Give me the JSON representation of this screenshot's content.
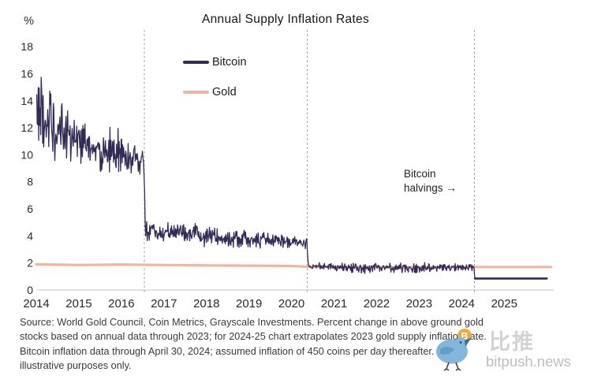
{
  "title": "Annual Supply Inflation Rates",
  "legend": {
    "items": [
      {
        "label": "Bitcoin",
        "color": "#312b55"
      },
      {
        "label": "Gold",
        "color": "#f4b3a0"
      }
    ]
  },
  "annotation": {
    "line1": "Bitcoin",
    "line2": "halvings →"
  },
  "source": {
    "lines": [
      "Source: World Gold Council, Coin Metrics, Grayscale Investments. Percent change in above ground gold",
      "stocks based on annual data through 2023; for 2024-25 chart extrapolates 2023 gold supply inflation rate.",
      "Bitcoin inflation data through April 30, 2024; assumed inflation of 450 coins per day thereafter. For",
      "illustrative purposes only."
    ]
  },
  "watermark": {
    "cn": "比推",
    "site": "bitpush.news"
  },
  "chart_data": {
    "type": "line",
    "title": "Annual Supply Inflation Rates",
    "xlabel": "",
    "ylabel": "%",
    "xlim": [
      2014.0,
      2026.2
    ],
    "ylim": [
      0,
      19
    ],
    "grid": false,
    "legend_position": "inside-top-left",
    "xticks": [
      2014,
      2015,
      2016,
      2017,
      2018,
      2019,
      2020,
      2021,
      2022,
      2023,
      2024,
      2025
    ],
    "yticks": [
      0,
      2,
      4,
      6,
      8,
      10,
      12,
      14,
      16,
      18
    ],
    "halvings": [
      2016.54,
      2020.37,
      2024.3
    ],
    "halvings_note": "Bitcoin halvings →",
    "colors": {
      "bitcoin": "#312b55",
      "gold": "#f4b3a0",
      "axis": "#d8d8d8",
      "dash": "#9b9b9b",
      "tick": "#2a2a2a"
    },
    "series": [
      {
        "name": "Bitcoin",
        "style": "noisy",
        "note": "anchors are [year, mean %, jitter amplitude %]; vertical drops at each halving",
        "anchors": [
          [
            2014.0,
            13.8,
            3.2
          ],
          [
            2014.15,
            12.8,
            2.6
          ],
          [
            2014.4,
            12.0,
            2.2
          ],
          [
            2014.7,
            11.6,
            2.0
          ],
          [
            2015.0,
            11.0,
            1.8
          ],
          [
            2015.3,
            10.6,
            1.6
          ],
          [
            2015.6,
            10.3,
            1.6
          ],
          [
            2015.9,
            10.6,
            2.2
          ],
          [
            2016.1,
            10.0,
            1.4
          ],
          [
            2016.35,
            9.6,
            1.3
          ],
          [
            2016.53,
            9.2,
            1.1
          ],
          [
            2016.56,
            4.4,
            0.7
          ],
          [
            2017.0,
            4.3,
            0.6
          ],
          [
            2017.5,
            4.15,
            0.6
          ],
          [
            2017.95,
            3.95,
            0.85
          ],
          [
            2018.3,
            3.9,
            0.6
          ],
          [
            2018.8,
            3.85,
            0.6
          ],
          [
            2019.3,
            3.75,
            0.6
          ],
          [
            2019.8,
            3.6,
            0.5
          ],
          [
            2020.1,
            3.5,
            0.45
          ],
          [
            2020.36,
            3.4,
            0.4
          ],
          [
            2020.4,
            1.8,
            0.25
          ],
          [
            2021.0,
            1.7,
            0.3
          ],
          [
            2021.45,
            1.6,
            0.45
          ],
          [
            2022.0,
            1.68,
            0.3
          ],
          [
            2022.6,
            1.6,
            0.35
          ],
          [
            2023.2,
            1.68,
            0.3
          ],
          [
            2023.8,
            1.65,
            0.28
          ],
          [
            2024.29,
            1.65,
            0.22
          ],
          [
            2024.31,
            0.85,
            0.02
          ],
          [
            2026.0,
            0.85,
            0.02
          ]
        ]
      },
      {
        "name": "Gold",
        "style": "step",
        "points": [
          [
            2014.0,
            1.9
          ],
          [
            2015.0,
            1.85
          ],
          [
            2016.0,
            1.88
          ],
          [
            2017.0,
            1.85
          ],
          [
            2018.0,
            1.82
          ],
          [
            2019.0,
            1.8
          ],
          [
            2020.0,
            1.78
          ],
          [
            2020.4,
            1.72
          ],
          [
            2021.0,
            1.7
          ],
          [
            2022.0,
            1.7
          ],
          [
            2023.0,
            1.68
          ],
          [
            2024.0,
            1.7
          ],
          [
            2026.1,
            1.7
          ]
        ]
      }
    ]
  }
}
